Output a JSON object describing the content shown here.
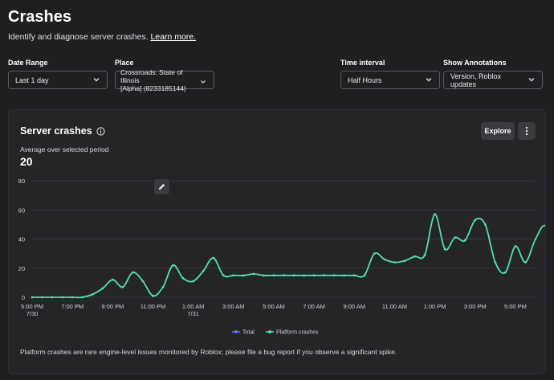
{
  "page": {
    "title": "Crashes",
    "subtitle": "Identify and diagnose server crashes.",
    "learn_more": "Learn more."
  },
  "filters": {
    "date_range": {
      "label": "Date Range",
      "value": "Last 1 day"
    },
    "place": {
      "label": "Place",
      "value_line1": "Crossroads: State of Illinois",
      "value_line2": "[Alpha] (8233185144)"
    },
    "time_interval": {
      "label": "Time interval",
      "value": "Half Hours"
    },
    "annotations": {
      "label": "Show Annotations",
      "value": "Version, Roblox updates"
    }
  },
  "card": {
    "title": "Server crashes",
    "explore_label": "Explore",
    "avg_label": "Average over selected period",
    "avg_value": "20",
    "footnote": "Platform crashes are rare engine-level issues monitored by Roblox; please file a bug report if you observe a significant spike."
  },
  "colors": {
    "series_total": "#6b7be8",
    "series_platform": "#4fe0b0",
    "grid": "#38383d",
    "axis_text": "#d0d0d4"
  },
  "chart_data": {
    "type": "line",
    "ylim": [
      0,
      80
    ],
    "y_ticks": [
      0,
      20,
      40,
      60,
      80
    ],
    "x_range_hours": [
      17,
      42
    ],
    "x_ticks": [
      {
        "label": "5:00 PM",
        "sub": "7/30",
        "hour": 17
      },
      {
        "label": "7:00 PM",
        "sub": "",
        "hour": 19
      },
      {
        "label": "9:00 PM",
        "sub": "",
        "hour": 21
      },
      {
        "label": "11:00 PM",
        "sub": "",
        "hour": 23
      },
      {
        "label": "1:00 AM",
        "sub": "7/31",
        "hour": 25
      },
      {
        "label": "3:00 AM",
        "sub": "",
        "hour": 27
      },
      {
        "label": "5:00 AM",
        "sub": "",
        "hour": 29
      },
      {
        "label": "7:00 AM",
        "sub": "",
        "hour": 31
      },
      {
        "label": "9:00 AM",
        "sub": "",
        "hour": 33
      },
      {
        "label": "11:00 AM",
        "sub": "",
        "hour": 35
      },
      {
        "label": "1:00 PM",
        "sub": "",
        "hour": 37
      },
      {
        "label": "3:00 PM",
        "sub": "",
        "hour": 39
      },
      {
        "label": "5:00 PM",
        "sub": "",
        "hour": 41
      }
    ],
    "legend": [
      "Total",
      "Platform crashes"
    ],
    "series": [
      {
        "name": "Platform crashes",
        "values": [
          0,
          0,
          0,
          0,
          0,
          0,
          2,
          6,
          12,
          7,
          17,
          11,
          1,
          7,
          22,
          13,
          11,
          18,
          27,
          15,
          15,
          15,
          16,
          15,
          15,
          15,
          15,
          15,
          15,
          15,
          15,
          15,
          15,
          15,
          30,
          26,
          24,
          25,
          28,
          29,
          57,
          33,
          41,
          39,
          53,
          50,
          24,
          17,
          35,
          24,
          40,
          49,
          28,
          15,
          3
        ]
      }
    ]
  }
}
